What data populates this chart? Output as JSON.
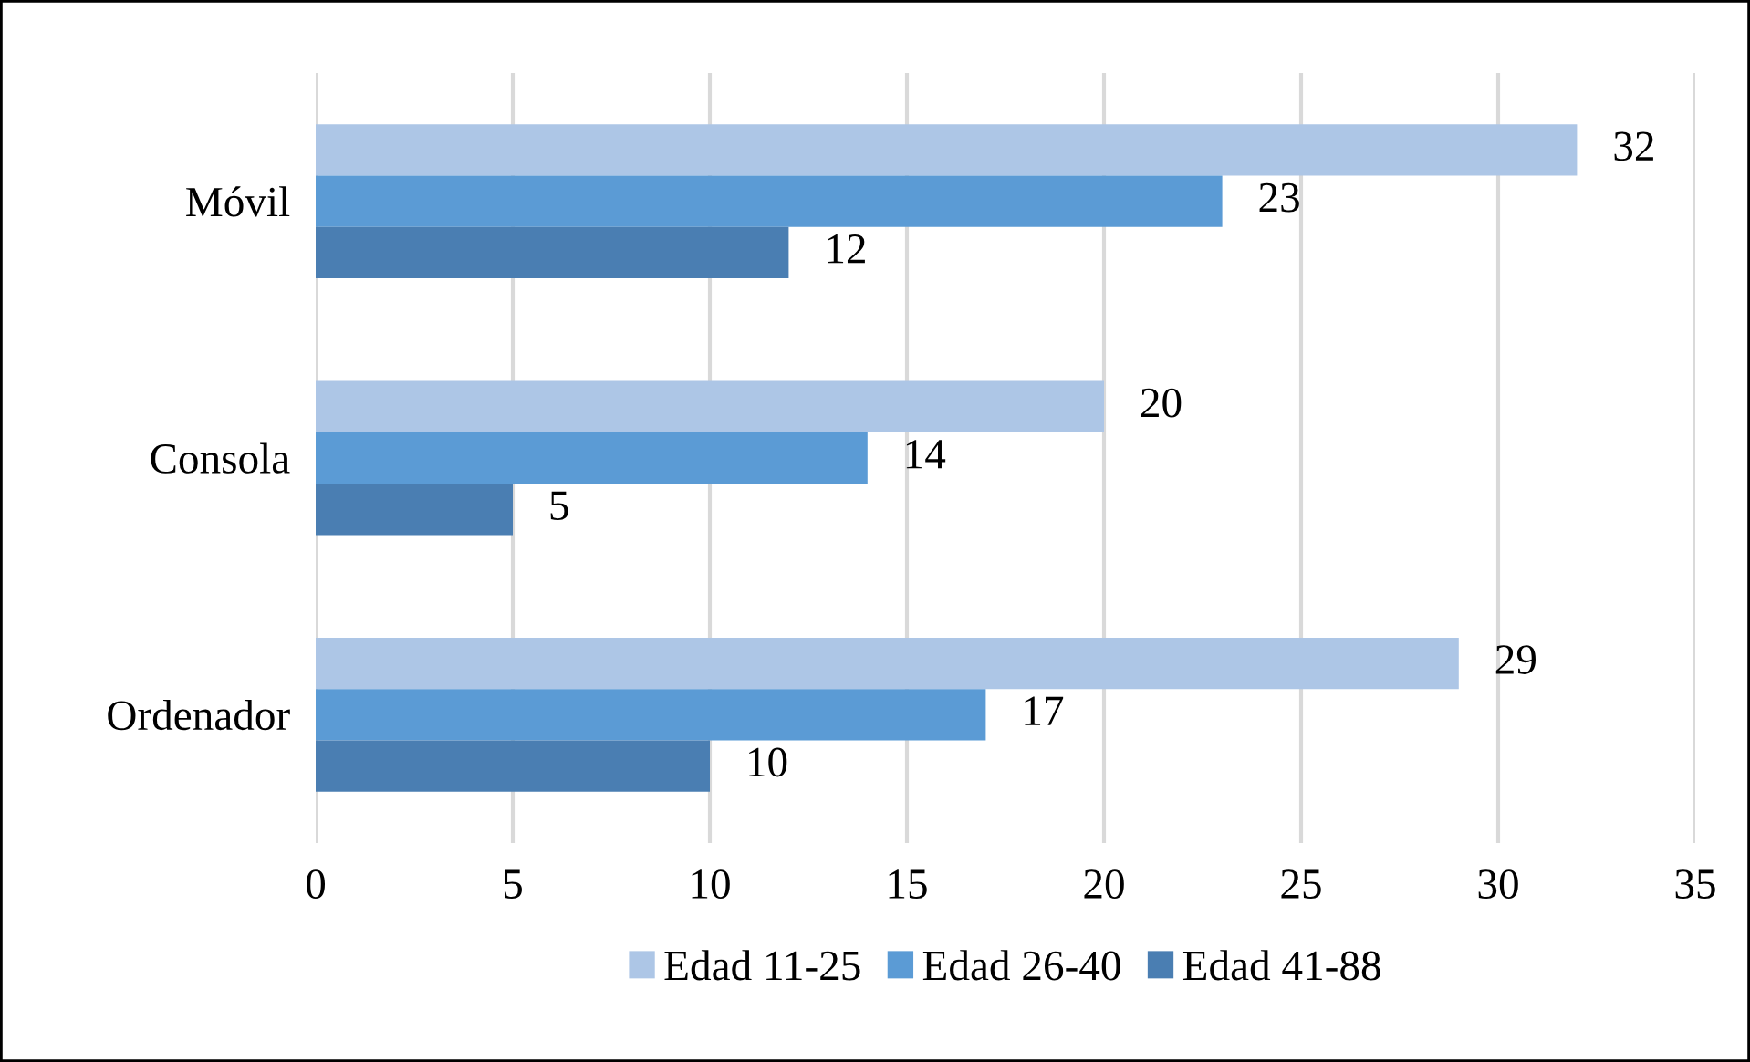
{
  "chart_data": {
    "type": "bar",
    "orientation": "horizontal",
    "categories": [
      "Móvil",
      "Consola",
      "Ordenador"
    ],
    "series": [
      {
        "name": "Edad 11-25",
        "color": "#adc6e6",
        "values": [
          32,
          20,
          29
        ]
      },
      {
        "name": "Edad 26-40",
        "color": "#5b9bd5",
        "values": [
          23,
          14,
          17
        ]
      },
      {
        "name": "Edad 41-88",
        "color": "#4a7eb2",
        "values": [
          12,
          5,
          10
        ]
      }
    ],
    "xlim": [
      0,
      35
    ],
    "xticks": [
      0,
      5,
      10,
      15,
      20,
      25,
      30,
      35
    ],
    "grid": "x",
    "legend": "bottom",
    "data_labels": true
  }
}
